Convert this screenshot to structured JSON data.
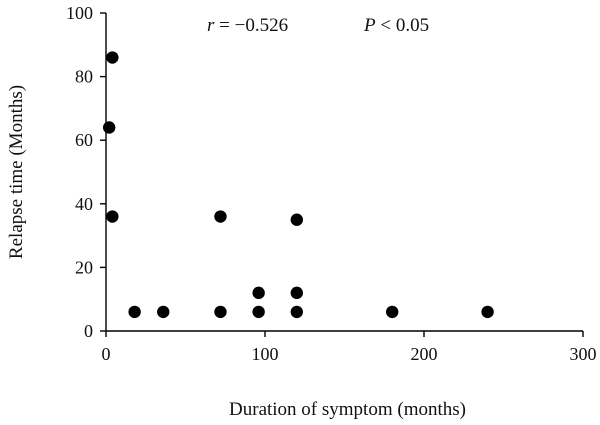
{
  "chart_data": {
    "type": "scatter",
    "title": "",
    "xlabel": "Duration of symptom (months)",
    "ylabel": "Relapse time (Months)",
    "xlim": [
      0,
      300
    ],
    "ylim": [
      0,
      100
    ],
    "x_ticks": [
      0,
      100,
      200,
      300
    ],
    "y_ticks": [
      0,
      20,
      40,
      60,
      80,
      100
    ],
    "grid": false,
    "legend": null,
    "marker_color": "#000000",
    "series": [
      {
        "points": [
          {
            "x": 2,
            "y": 64
          },
          {
            "x": 4,
            "y": 86
          },
          {
            "x": 4,
            "y": 36
          },
          {
            "x": 18,
            "y": 6
          },
          {
            "x": 36,
            "y": 6
          },
          {
            "x": 72,
            "y": 36
          },
          {
            "x": 72,
            "y": 6
          },
          {
            "x": 96,
            "y": 12
          },
          {
            "x": 96,
            "y": 6
          },
          {
            "x": 120,
            "y": 35
          },
          {
            "x": 120,
            "y": 12
          },
          {
            "x": 120,
            "y": 6
          },
          {
            "x": 180,
            "y": 6
          },
          {
            "x": 240,
            "y": 6
          }
        ]
      }
    ],
    "annotations": [
      {
        "var": "r",
        "text": " = −0.526"
      },
      {
        "var": "P",
        "text": " < 0.05"
      }
    ]
  }
}
